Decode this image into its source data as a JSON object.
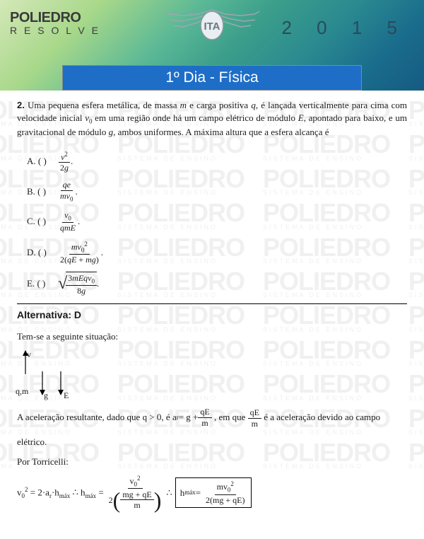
{
  "brand": {
    "main": "POLIEDRO",
    "sub": "R E S O L V E",
    "watermark_big": "POLIEDRO",
    "watermark_small": "SISTEMA DE ENSINO"
  },
  "year": "2 0 1 5",
  "title": "1º Dia  - Física",
  "question": {
    "number": "2.",
    "text": "Uma pequena esfera metálica, de massa m e carga positiva q, é lançada verticalmente para cima com velocidade inicial v₀ em uma região onde há um campo elétrico de módulo E, apontado para baixo, e um gravitacional de módulo g, ambos uniformes. A máxima altura que a esfera alcança é",
    "options": {
      "A": {
        "label": "A. (   )",
        "num": "v²",
        "den": "2g"
      },
      "B": {
        "label": "B. (   )",
        "num": "qe",
        "den": "mv₀"
      },
      "C": {
        "label": "C. (   )",
        "num": "v₀",
        "den": "qmE"
      },
      "D": {
        "label": "D. (   )",
        "num": "mv₀²",
        "den": "2(qE + mg)"
      },
      "E": {
        "label": "E. (   )",
        "num": "3mEqv₀",
        "den": "8g"
      }
    }
  },
  "answer": {
    "label": "Alternativa: D",
    "situation_text": "Tem-se a seguinte situação:",
    "diagram": {
      "v": "v",
      "qm": "q,m",
      "g": "g",
      "E": "E"
    },
    "explain_pre": "A aceleração resultante, dado que q > 0, é ",
    "ar_eq": "aᵣ = g + ",
    "qE": "qE",
    "m": "m",
    "explain_mid": ", em que ",
    "explain_post": " é a aceleração devido ao campo",
    "explain_last": "elétrico.",
    "torricelli": "Por Torricelli:",
    "final": {
      "lhs": "v₀² = 2·aᵣ·h",
      "hmax": "máx",
      "therefore1": "∴ h",
      "eq": " = ",
      "f1num": "v₀²",
      "f1den_outer": "2",
      "f1den_inner_num": "mg + qE",
      "f1den_inner_den": "m",
      "therefore2": "∴",
      "box_lhs": "h",
      "box_num": "mv₀²",
      "box_den": "2(mg + qE)"
    }
  },
  "colors": {
    "title_bg": "#1e6ec8",
    "text": "#1a1a1a",
    "watermark": "#f0f0f0"
  }
}
